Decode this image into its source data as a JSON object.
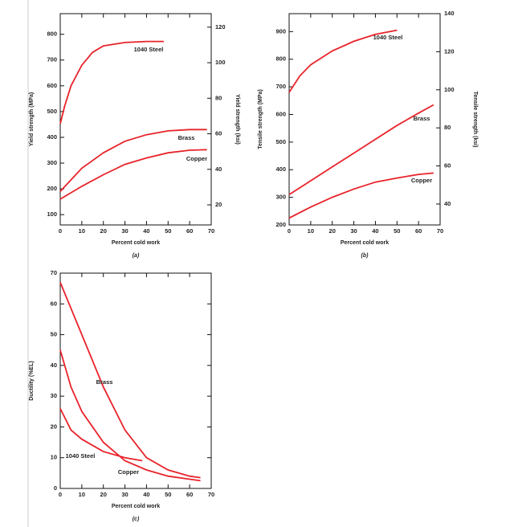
{
  "chart_data": [
    {
      "type": "line",
      "xlabel": "Percent cold work",
      "ylabel": "Yield strength (MPa)",
      "y2label": "Yield strength (ksi)",
      "caption": "(a)",
      "xlim": [
        0,
        70
      ],
      "xticks": [
        0,
        10,
        20,
        30,
        40,
        50,
        60,
        70
      ],
      "ylim": [
        60,
        880
      ],
      "yticks": [
        100,
        200,
        300,
        400,
        500,
        600,
        700,
        800
      ],
      "y2lim": [
        8.7,
        127.6
      ],
      "y2ticks": [
        20,
        40,
        60,
        80,
        100,
        120
      ],
      "series": [
        {
          "name": "1040 Steel",
          "color": "#e8232a",
          "x": [
            0,
            2,
            5,
            10,
            15,
            20,
            30,
            40,
            48
          ],
          "values": [
            453,
            520,
            600,
            680,
            730,
            755,
            768,
            772,
            772
          ]
        },
        {
          "name": "Brass",
          "color": "#e8232a",
          "x": [
            0,
            10,
            20,
            30,
            40,
            50,
            60,
            68
          ],
          "values": [
            190,
            280,
            340,
            385,
            410,
            425,
            430,
            430
          ]
        },
        {
          "name": "Copper",
          "color": "#e8232a",
          "x": [
            0,
            10,
            20,
            30,
            40,
            50,
            60,
            68
          ],
          "values": [
            160,
            210,
            255,
            295,
            320,
            340,
            350,
            352
          ]
        }
      ]
    },
    {
      "type": "line",
      "xlabel": "Percent cold work",
      "ylabel": "Tensile strength (MPa)",
      "y2label": "Tensile strength (ksi)",
      "caption": "(b)",
      "xlim": [
        0,
        70
      ],
      "xticks": [
        0,
        10,
        20,
        30,
        40,
        50,
        60,
        70
      ],
      "ylim": [
        200,
        965
      ],
      "yticks": [
        200,
        300,
        400,
        500,
        600,
        700,
        800,
        900
      ],
      "y2lim": [
        29,
        140
      ],
      "y2ticks": [
        40,
        60,
        80,
        100,
        120,
        140
      ],
      "series": [
        {
          "name": "1040 Steel",
          "color": "#e8232a",
          "x": [
            0,
            5,
            10,
            20,
            30,
            40,
            50
          ],
          "values": [
            680,
            740,
            780,
            830,
            865,
            890,
            905
          ]
        },
        {
          "name": "Brass",
          "color": "#e8232a",
          "x": [
            0,
            10,
            20,
            30,
            40,
            50,
            60,
            67
          ],
          "values": [
            310,
            360,
            410,
            460,
            510,
            560,
            605,
            635
          ]
        },
        {
          "name": "Copper",
          "color": "#e8232a",
          "x": [
            0,
            10,
            20,
            30,
            40,
            50,
            60,
            67
          ],
          "values": [
            225,
            265,
            300,
            330,
            355,
            370,
            383,
            388
          ]
        }
      ]
    },
    {
      "type": "line",
      "xlabel": "Percent cold work",
      "ylabel": "Ductility (%EL)",
      "caption": "(c)",
      "xlim": [
        0,
        70
      ],
      "xticks": [
        0,
        10,
        20,
        30,
        40,
        50,
        60,
        70
      ],
      "ylim": [
        0,
        70
      ],
      "yticks": [
        0,
        10,
        20,
        30,
        40,
        50,
        60,
        70
      ],
      "series": [
        {
          "name": "Brass",
          "color": "#e8232a",
          "x": [
            0,
            10,
            20,
            30,
            40,
            50,
            60,
            65
          ],
          "values": [
            67,
            50,
            33,
            19,
            10,
            6,
            4,
            3.5
          ]
        },
        {
          "name": "1040 Steel",
          "color": "#e8232a",
          "x": [
            0,
            5,
            10,
            20,
            30,
            38
          ],
          "values": [
            26,
            19,
            16,
            12,
            10,
            9
          ]
        },
        {
          "name": "Copper",
          "color": "#e8232a",
          "x": [
            0,
            5,
            10,
            20,
            30,
            40,
            50,
            60,
            65
          ],
          "values": [
            45,
            33,
            25,
            15,
            9,
            6,
            4,
            3,
            2.5
          ]
        }
      ]
    }
  ]
}
